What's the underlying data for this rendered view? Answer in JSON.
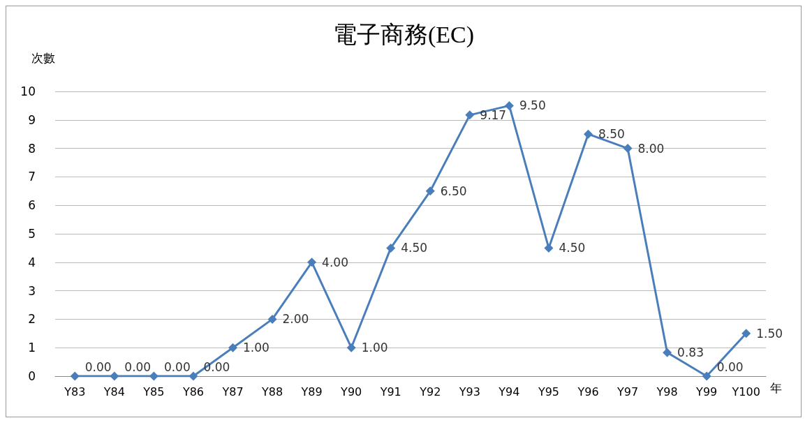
{
  "chart_data": {
    "type": "line",
    "title": "電子商務(EC)",
    "ylabel": "次數",
    "xlabel": "年",
    "categories": [
      "Y83",
      "Y84",
      "Y85",
      "Y86",
      "Y87",
      "Y88",
      "Y89",
      "Y90",
      "Y91",
      "Y92",
      "Y93",
      "Y94",
      "Y95",
      "Y96",
      "Y97",
      "Y98",
      "Y99",
      "Y100"
    ],
    "series": [
      {
        "color": "#4a7ebb",
        "values": [
          0,
          0,
          0,
          0,
          1,
          2,
          4,
          1,
          4.5,
          6.5,
          9.17,
          9.5,
          4.5,
          8.5,
          8,
          0.83,
          0,
          1.5
        ],
        "value_labels": [
          "0.00",
          "0.00",
          "0.00",
          "0.00",
          "1.00",
          "2.00",
          "4.00",
          "1.00",
          "4.50",
          "6.50",
          "9.17",
          "9.50",
          "4.50",
          "8.50",
          "8.00",
          "0.83",
          "0.00",
          "1.50"
        ]
      }
    ],
    "ylim": [
      0,
      10
    ],
    "yticks": [
      0,
      1,
      2,
      3,
      4,
      5,
      6,
      7,
      8,
      9,
      10
    ],
    "grid": "y",
    "marker": "diamond",
    "line_style": "solid"
  }
}
